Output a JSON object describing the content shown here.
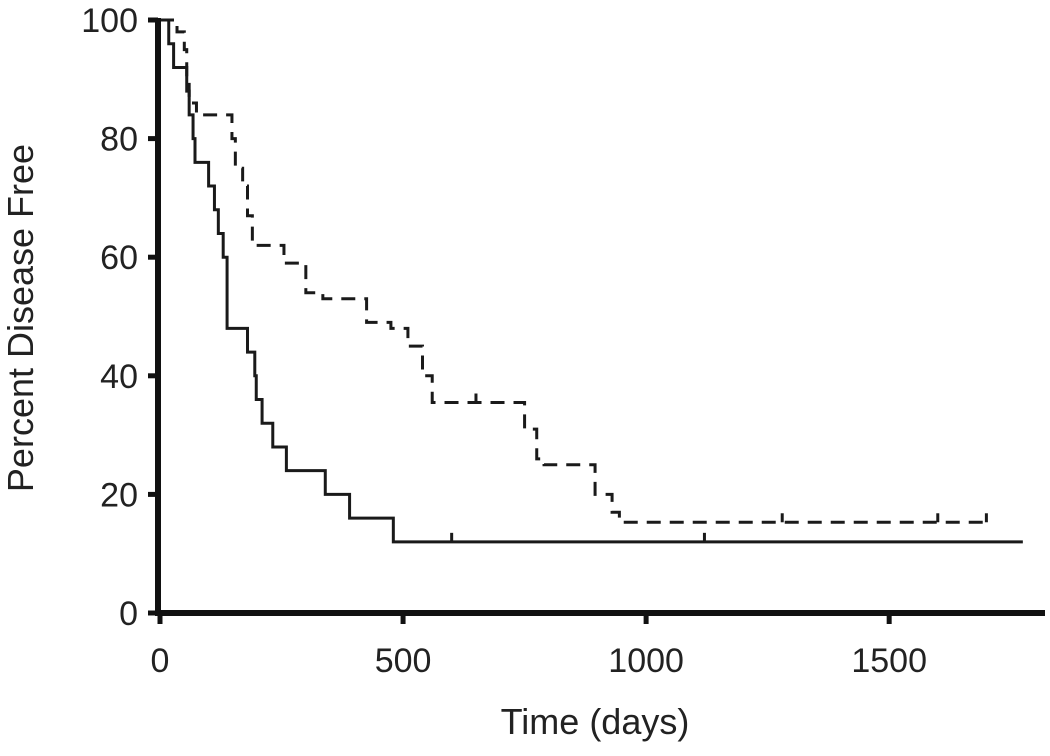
{
  "chart_data": {
    "type": "line",
    "title": "",
    "xlabel": "Time (days)",
    "ylabel": "Percent Disease Free",
    "xlim": [
      0,
      1800
    ],
    "ylim": [
      0,
      100
    ],
    "x_ticks": [
      0,
      500,
      1000,
      1500
    ],
    "y_ticks": [
      0,
      20,
      40,
      60,
      80,
      100
    ],
    "x_tick_labels": [
      "0",
      "500",
      "1000",
      "1500"
    ],
    "y_tick_labels": [
      "0",
      "20",
      "40",
      "60",
      "80",
      "100"
    ],
    "grid": false,
    "legend": "none",
    "series": [
      {
        "style": "solid",
        "color": "#1a1a1a",
        "steps": [
          [
            0,
            100
          ],
          [
            18,
            96
          ],
          [
            28,
            92
          ],
          [
            55,
            88
          ],
          [
            60,
            84
          ],
          [
            68,
            80
          ],
          [
            72,
            76
          ],
          [
            100,
            72
          ],
          [
            112,
            68
          ],
          [
            120,
            64
          ],
          [
            130,
            60
          ],
          [
            138,
            48
          ],
          [
            180,
            44
          ],
          [
            195,
            40
          ],
          [
            198,
            36
          ],
          [
            210,
            32
          ],
          [
            232,
            28
          ],
          [
            260,
            24
          ],
          [
            340,
            20
          ],
          [
            390,
            16
          ],
          [
            480,
            12
          ],
          [
            1775,
            12
          ]
        ],
        "censored": [
          600,
          1120
        ]
      },
      {
        "style": "dashed",
        "color": "#1a1a1a",
        "steps": [
          [
            0,
            100
          ],
          [
            35,
            98
          ],
          [
            50,
            95
          ],
          [
            55,
            90
          ],
          [
            60,
            86
          ],
          [
            75,
            84
          ],
          [
            148,
            80
          ],
          [
            155,
            75
          ],
          [
            170,
            72
          ],
          [
            180,
            67
          ],
          [
            190,
            62
          ],
          [
            255,
            59
          ],
          [
            300,
            54
          ],
          [
            335,
            53
          ],
          [
            425,
            49
          ],
          [
            475,
            48
          ],
          [
            510,
            45
          ],
          [
            540,
            40
          ],
          [
            560,
            35.5
          ],
          [
            750,
            31
          ],
          [
            775,
            26
          ],
          [
            790,
            25
          ],
          [
            895,
            20
          ],
          [
            930,
            17
          ],
          [
            945,
            15.3
          ],
          [
            1700,
            15.3
          ]
        ],
        "censored": [
          650,
          1280,
          1600,
          1700
        ]
      }
    ]
  }
}
